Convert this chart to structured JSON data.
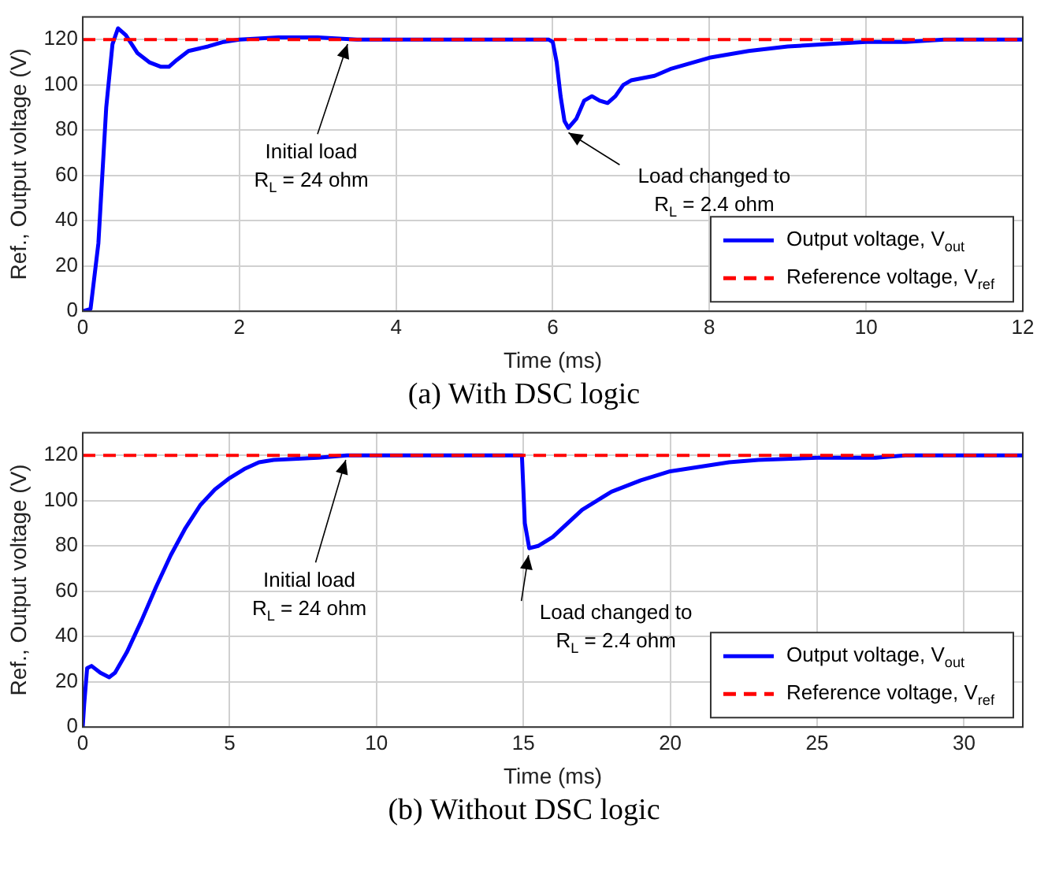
{
  "chart_data": [
    {
      "type": "line",
      "xlabel": "Time (ms)",
      "ylabel": "Ref., Output voltage (V)",
      "xlim": [
        0,
        12
      ],
      "xticks": [
        0,
        2,
        4,
        6,
        8,
        10,
        12
      ],
      "ylim": [
        0,
        130
      ],
      "yticks": [
        0,
        20,
        40,
        60,
        80,
        100,
        120
      ],
      "grid": true,
      "legend": "bottom right",
      "marker": "none",
      "series": [
        {
          "name": "Output voltage, V$_{out}$",
          "color": "#0000ff",
          "line_style": "solid",
          "x": [
            0,
            0.1,
            0.2,
            0.3,
            0.38,
            0.45,
            0.55,
            0.7,
            0.85,
            1.0,
            1.1,
            1.2,
            1.35,
            1.6,
            1.8,
            2.0,
            2.5,
            3.0,
            3.5,
            4,
            5,
            5.95,
            6.0,
            6.05,
            6.1,
            6.15,
            6.2,
            6.3,
            6.4,
            6.5,
            6.6,
            6.7,
            6.8,
            6.9,
            7.0,
            7.3,
            7.5,
            8.0,
            8.5,
            9.0,
            9.5,
            10,
            10.5,
            11,
            12
          ],
          "values": [
            0,
            1,
            30,
            90,
            118,
            125,
            122,
            114,
            110,
            108,
            108,
            111,
            115,
            117,
            119,
            120,
            121,
            121,
            120,
            120,
            120,
            120,
            119,
            110,
            95,
            84,
            81,
            85,
            93,
            95,
            93,
            92,
            95,
            100,
            102,
            104,
            107,
            112,
            115,
            117,
            118,
            119,
            119,
            120,
            120
          ]
        },
        {
          "name": "Reference voltage, V$_{ref}$",
          "color": "#ff0000",
          "line_style": "dashed",
          "x": [
            0,
            12
          ],
          "values": [
            120,
            120
          ]
        }
      ],
      "annotations": [
        {
          "text": "Initial load\nR$_{L}$ = 24 ohm",
          "x": 3.4,
          "y": 120
        },
        {
          "text": "Load changed to\nR$_{L}$ = 2.4 ohm",
          "x": 6.15,
          "y": 80
        },
        "(a) With DSC logic"
      ]
    },
    {
      "type": "line",
      "xlabel": "Time (ms)",
      "ylabel": "Ref., Output voltage (V)",
      "xlim": [
        0,
        32
      ],
      "xticks": [
        0,
        5,
        10,
        15,
        20,
        25,
        30
      ],
      "ylim": [
        0,
        130
      ],
      "yticks": [
        0,
        20,
        40,
        60,
        80,
        100,
        120
      ],
      "grid": true,
      "legend": "bottom right",
      "marker": "none",
      "series": [
        {
          "name": "Output voltage, V$_{out}$",
          "color": "#0000ff",
          "line_style": "solid",
          "x": [
            0,
            0.05,
            0.15,
            0.3,
            0.6,
            0.9,
            1.1,
            1.5,
            2,
            2.5,
            3,
            3.5,
            4,
            4.5,
            5,
            5.5,
            6,
            6.5,
            8,
            9,
            10,
            12,
            14,
            14.95,
            15.05,
            15.2,
            15.5,
            16,
            16.5,
            17,
            17.5,
            18,
            19,
            20,
            21,
            22,
            23,
            25,
            27,
            28,
            32
          ],
          "values": [
            0,
            10,
            26,
            27,
            24,
            22,
            24,
            33,
            47,
            62,
            76,
            88,
            98,
            105,
            110,
            114,
            117,
            118,
            119,
            120,
            120,
            120,
            120,
            120,
            90,
            79,
            80,
            84,
            90,
            96,
            100,
            104,
            109,
            113,
            115,
            117,
            118,
            119,
            119,
            120,
            120
          ]
        },
        {
          "name": "Reference voltage, V$_{ref}$",
          "color": "#ff0000",
          "line_style": "dashed",
          "x": [
            0,
            32
          ],
          "values": [
            120,
            120
          ]
        }
      ],
      "annotations": [
        {
          "text": "Initial load\nR$_{L}$ = 24 ohm",
          "x": 9,
          "y": 120
        },
        {
          "text": "Load changed to\nR$_{L}$ = 2.4 ohm",
          "x": 15.2,
          "y": 78
        },
        "(b) Without DSC logic"
      ]
    }
  ]
}
